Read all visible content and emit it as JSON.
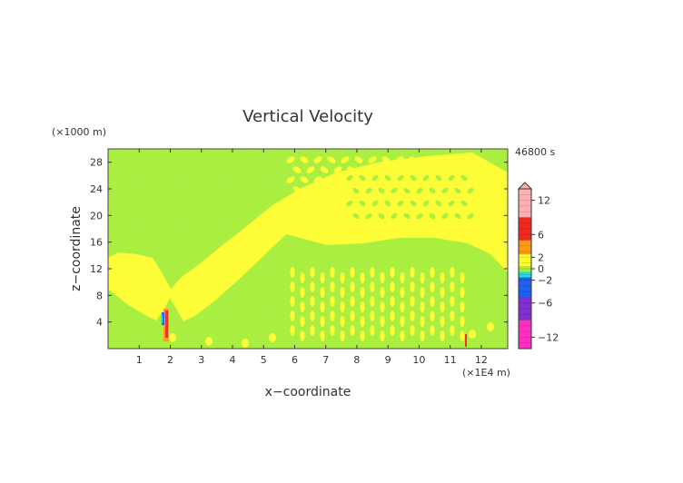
{
  "chart_data": {
    "type": "heatmap",
    "title": "Vertical Velocity",
    "time_label": "46800 s",
    "xlabel": "x−coordinate",
    "ylabel": "z−coordinate",
    "x_unit_label": "(×1E4 m)",
    "y_unit_label": "(×1000 m)",
    "xlim": [
      0,
      12.85
    ],
    "ylim": [
      0,
      30
    ],
    "x_ticks": [
      "1",
      "2",
      "3",
      "4",
      "5",
      "6",
      "7",
      "8",
      "9",
      "10",
      "11",
      "12"
    ],
    "y_ticks": [
      "4",
      "8",
      "12",
      "16",
      "20",
      "24",
      "28"
    ],
    "colorbar": {
      "tick_labels": [
        "12",
        "6",
        "2",
        "0",
        "−2",
        "−6",
        "−12"
      ],
      "tick_values": [
        12,
        6,
        2,
        0,
        -2,
        -6,
        -12
      ],
      "range": [
        -14,
        14
      ],
      "extend_top": true
    },
    "colors": {
      "background_green": "#a8ee3a",
      "positive_small_yellow": "#fdfd30",
      "positive_orange": "#ff9a10",
      "positive_red": "#ee2a20",
      "positive_pink": "#ffb0b0",
      "negative_cyan": "#22dcd8",
      "negative_blue": "#2060f0",
      "negative_purple": "#8030d0",
      "negative_magenta": "#ff30c0"
    },
    "features": [
      {
        "desc": "yellow updraft wedge left",
        "kind": "v-shape",
        "apex_x": 1.85,
        "apex_z": 7.5
      },
      {
        "desc": "yellow updraft band right",
        "kind": "band"
      },
      {
        "desc": "mountain-wave core",
        "x": 1.9,
        "z_range": [
          1,
          6
        ]
      }
    ]
  }
}
